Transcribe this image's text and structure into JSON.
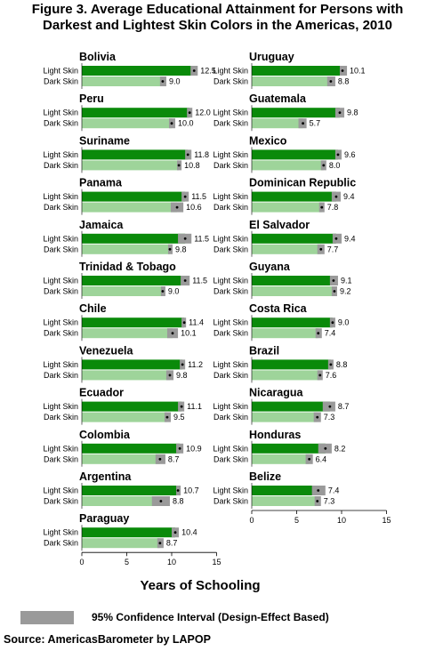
{
  "title_line1": "Figure 3. Average Educational Attainment for Persons with",
  "title_line2": "Darkest and Lightest Skin Colors in the Americas, 2010",
  "source": "Source: AmericasBarometer by  LAPOP",
  "colors": {
    "light": "#0a8a0a",
    "dark": "#9ed49a",
    "ci": "#9a9a9a"
  },
  "chart_data": {
    "type": "bar",
    "orientation": "horizontal",
    "xlabel": "Years of Schooling",
    "xlim": [
      0,
      15
    ],
    "xticks": [
      0,
      5,
      10,
      15
    ],
    "legend": {
      "label": "95% Confidence Interval (Design-Effect Based)",
      "placement": "bottom"
    },
    "series_labels": [
      "Light Skin",
      "Dark Skin"
    ],
    "countries": [
      {
        "name": "Bolivia",
        "light": 12.5,
        "dark": 9.0,
        "light_ci": [
          12.1,
          12.9
        ],
        "dark_ci": [
          8.7,
          9.4
        ]
      },
      {
        "name": "Peru",
        "light": 12.0,
        "dark": 10.0,
        "light_ci": [
          11.7,
          12.3
        ],
        "dark_ci": [
          9.7,
          10.4
        ]
      },
      {
        "name": "Suriname",
        "light": 11.8,
        "dark": 10.8,
        "light_ci": [
          11.5,
          12.2
        ],
        "dark_ci": [
          10.6,
          11.1
        ]
      },
      {
        "name": "Panama",
        "light": 11.5,
        "dark": 10.6,
        "light_ci": [
          11.1,
          11.9
        ],
        "dark_ci": [
          9.9,
          11.3
        ]
      },
      {
        "name": "Jamaica",
        "light": 11.5,
        "dark": 9.8,
        "light_ci": [
          10.7,
          12.2
        ],
        "dark_ci": [
          9.6,
          10.1
        ]
      },
      {
        "name": "Trinidad & Tobago",
        "light": 11.5,
        "dark": 9.0,
        "light_ci": [
          11.0,
          12.0
        ],
        "dark_ci": [
          8.8,
          9.3
        ]
      },
      {
        "name": "Chile",
        "light": 11.4,
        "dark": 10.1,
        "light_ci": [
          11.1,
          11.6
        ],
        "dark_ci": [
          9.5,
          10.7
        ]
      },
      {
        "name": "Venezuela",
        "light": 11.2,
        "dark": 9.8,
        "light_ci": [
          10.9,
          11.5
        ],
        "dark_ci": [
          9.4,
          10.2
        ]
      },
      {
        "name": "Ecuador",
        "light": 11.1,
        "dark": 9.5,
        "light_ci": [
          10.7,
          11.4
        ],
        "dark_ci": [
          9.2,
          9.9
        ]
      },
      {
        "name": "Colombia",
        "light": 10.9,
        "dark": 8.7,
        "light_ci": [
          10.5,
          11.3
        ],
        "dark_ci": [
          8.2,
          9.3
        ]
      },
      {
        "name": "Argentina",
        "light": 10.7,
        "dark": 8.8,
        "light_ci": [
          10.5,
          11.0
        ],
        "dark_ci": [
          7.8,
          9.8
        ]
      },
      {
        "name": "Paraguay",
        "light": 10.4,
        "dark": 8.7,
        "light_ci": [
          10.0,
          10.8
        ],
        "dark_ci": [
          8.4,
          9.1
        ]
      },
      {
        "name": "Uruguay",
        "light": 10.1,
        "dark": 8.8,
        "light_ci": [
          9.8,
          10.6
        ],
        "dark_ci": [
          8.4,
          9.3
        ]
      },
      {
        "name": "Guatemala",
        "light": 9.8,
        "dark": 5.7,
        "light_ci": [
          9.3,
          10.3
        ],
        "dark_ci": [
          5.2,
          6.1
        ]
      },
      {
        "name": "Mexico",
        "light": 9.6,
        "dark": 8.0,
        "light_ci": [
          9.3,
          10.0
        ],
        "dark_ci": [
          7.7,
          8.3
        ]
      },
      {
        "name": "Dominican Republic",
        "light": 9.4,
        "dark": 7.8,
        "light_ci": [
          8.9,
          9.9
        ],
        "dark_ci": [
          7.5,
          8.1
        ]
      },
      {
        "name": "El Salvador",
        "light": 9.4,
        "dark": 7.7,
        "light_ci": [
          9.0,
          10.0
        ],
        "dark_ci": [
          7.3,
          8.1
        ]
      },
      {
        "name": "Guyana",
        "light": 9.1,
        "dark": 9.2,
        "light_ci": [
          8.7,
          9.6
        ],
        "dark_ci": [
          8.9,
          9.5
        ]
      },
      {
        "name": "Costa Rica",
        "light": 9.0,
        "dark": 7.4,
        "light_ci": [
          8.7,
          9.3
        ],
        "dark_ci": [
          7.1,
          7.8
        ]
      },
      {
        "name": "Brazil",
        "light": 8.8,
        "dark": 7.6,
        "light_ci": [
          8.5,
          9.1
        ],
        "dark_ci": [
          7.3,
          7.9
        ]
      },
      {
        "name": "Nicaragua",
        "light": 8.7,
        "dark": 7.3,
        "light_ci": [
          7.9,
          9.3
        ],
        "dark_ci": [
          6.9,
          7.7
        ]
      },
      {
        "name": "Honduras",
        "light": 8.2,
        "dark": 6.4,
        "light_ci": [
          7.4,
          8.9
        ],
        "dark_ci": [
          6.0,
          6.8
        ]
      },
      {
        "name": "Belize",
        "light": 7.4,
        "dark": 7.3,
        "light_ci": [
          6.7,
          8.2
        ],
        "dark_ci": [
          7.0,
          7.7
        ]
      }
    ]
  }
}
